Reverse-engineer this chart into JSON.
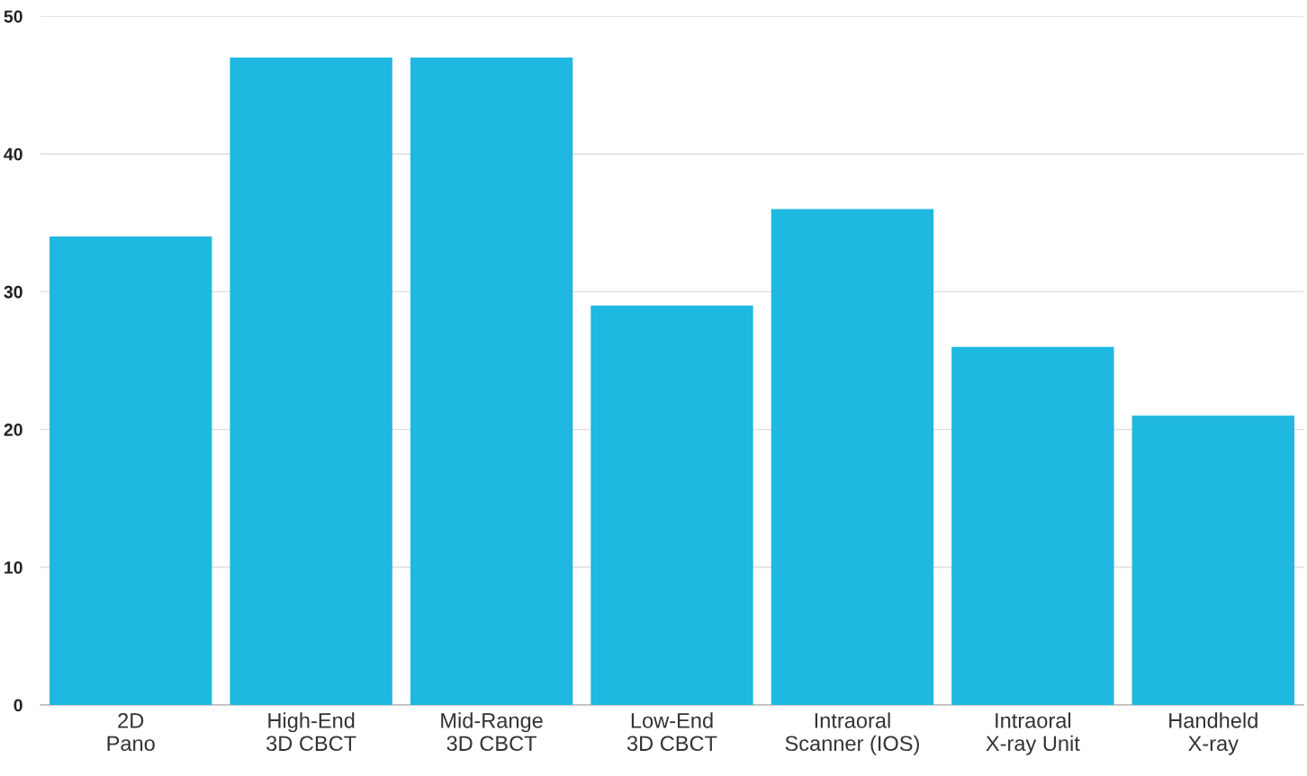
{
  "chart_data": {
    "type": "bar",
    "categories": [
      "2D\nPano",
      "High-End\n3D CBCT",
      "Mid-Range\n3D CBCT",
      "Low-End\n3D CBCT",
      "Intraoral\nScanner (IOS)",
      "Intraoral\nX-ray Unit",
      "Handheld\nX-ray"
    ],
    "values": [
      34,
      47,
      47,
      29,
      36,
      26,
      21
    ],
    "color": "#1fb8e0",
    "ylim": [
      0,
      50
    ],
    "yticks": [
      0,
      10,
      20,
      30,
      40,
      50
    ],
    "grid": "y",
    "legend": false
  }
}
